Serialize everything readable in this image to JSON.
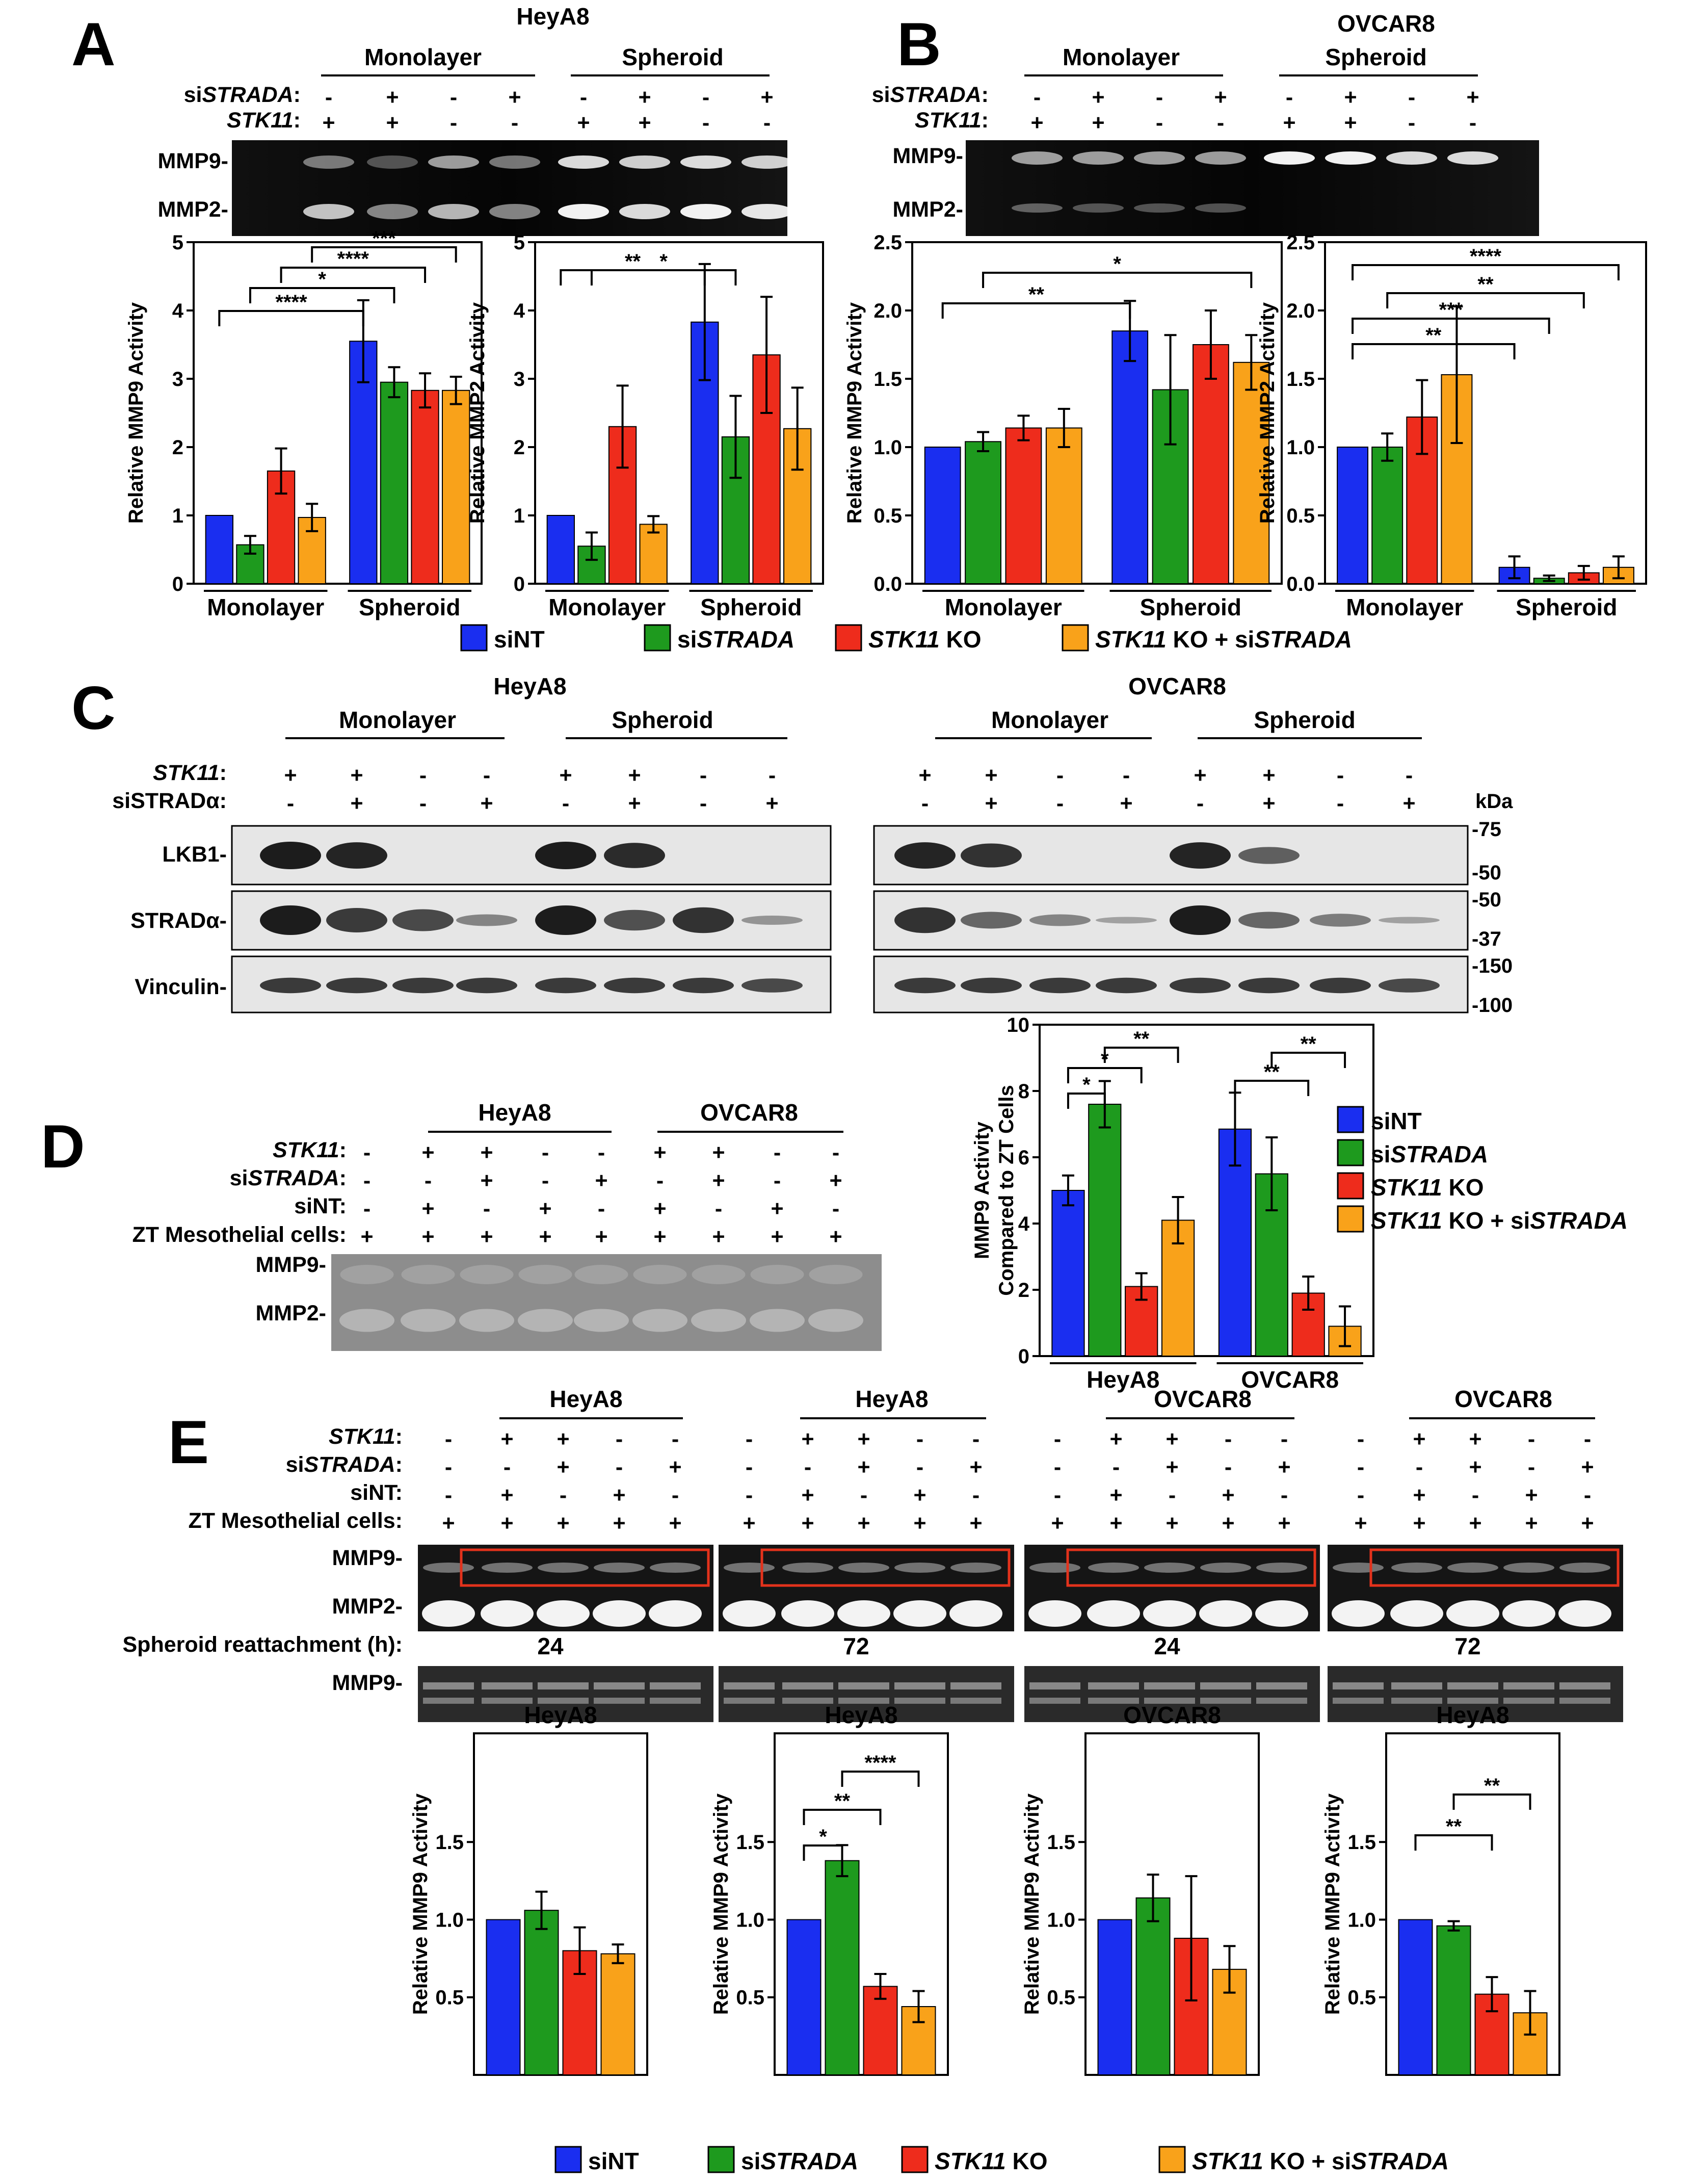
{
  "colors": {
    "siNT": "#1a2ef0",
    "siSTRADA": "#1e9a1e",
    "KO": "#ee2c1c",
    "KOsi": "#f9a21a"
  },
  "panels": [
    {
      "letter": "A"
    },
    {
      "letter": "B"
    },
    {
      "letter": "C"
    },
    {
      "letter": "D"
    },
    {
      "letter": "E"
    }
  ],
  "cells": {
    "heya8": "HeyA8",
    "ovcar8": "OVCAR8"
  },
  "conditions": {
    "monolayer": "Monolayer",
    "spheroid": "Spheroid"
  },
  "row_labels": {
    "si_prefix": "si",
    "strada_italic": "STRADA",
    "strada_alpha": "STRADα",
    "stk11": "STK11",
    "sint": "siNT",
    "zt": "ZT Mesothelial cells",
    "colon": ":"
  },
  "gel_labels": {
    "mmp9": "MMP9-",
    "mmp2": "MMP2-",
    "lkb1": "LKB1-",
    "stradA": "STRADα-",
    "vinculin": "Vinculin-"
  },
  "kda": {
    "unit": "kDa",
    "marks": [
      "-75",
      "-50",
      "-50",
      "-37",
      "-150",
      "-100"
    ]
  },
  "signs": {
    "plus": "+",
    "minus": "-"
  },
  "legend": {
    "items": [
      {
        "key": "siNT",
        "pre": "siNT",
        "ital": "",
        "post": ""
      },
      {
        "key": "siSTRADA",
        "pre": "si",
        "ital": "STRADA",
        "post": ""
      },
      {
        "key": "KO",
        "pre": "",
        "ital": "STK11",
        "post": " KO"
      },
      {
        "key": "KOsi",
        "pre": "",
        "ital": "STK11",
        "post": " KO + si",
        "ital2": "STRADA"
      }
    ]
  },
  "e_timepoints": {
    "label": "Spheroid reattachment (h):",
    "values": [
      "24",
      "72",
      "24",
      "72"
    ]
  },
  "chart_data": [
    {
      "id": "A_mmp9",
      "type": "bar",
      "title": "",
      "ylabel": "Relative MMP9 Activity",
      "ylim": [
        0,
        5
      ],
      "yticks": [
        "0",
        "1",
        "2",
        "3",
        "4",
        "5"
      ],
      "groups": [
        "Monolayer",
        "Spheroid"
      ],
      "series": [
        {
          "name": "siNT",
          "values": [
            1.0,
            3.55
          ],
          "errors": [
            0,
            0.6
          ]
        },
        {
          "name": "siSTRADA",
          "values": [
            0.57,
            2.95
          ],
          "errors": [
            0.13,
            0.22
          ]
        },
        {
          "name": "STK11 KO",
          "values": [
            1.65,
            2.83
          ],
          "errors": [
            0.33,
            0.25
          ]
        },
        {
          "name": "STK11 KO + siSTRADA",
          "values": [
            0.97,
            2.83
          ],
          "errors": [
            0.2,
            0.2
          ]
        }
      ],
      "significance": [
        "****",
        "*",
        "****",
        "***"
      ]
    },
    {
      "id": "A_mmp2",
      "type": "bar",
      "title": "",
      "ylabel": "Relative MMP2 Activity",
      "ylim": [
        0,
        5
      ],
      "yticks": [
        "0",
        "1",
        "2",
        "3",
        "4",
        "5"
      ],
      "groups": [
        "Monolayer",
        "Spheroid"
      ],
      "series": [
        {
          "name": "siNT",
          "values": [
            1.0,
            3.83
          ],
          "errors": [
            0,
            0.85
          ]
        },
        {
          "name": "siSTRADA",
          "values": [
            0.55,
            2.15
          ],
          "errors": [
            0.2,
            0.6
          ]
        },
        {
          "name": "STK11 KO",
          "values": [
            2.3,
            3.35
          ],
          "errors": [
            0.6,
            0.85
          ]
        },
        {
          "name": "STK11 KO + siSTRADA",
          "values": [
            0.87,
            2.27
          ],
          "errors": [
            0.12,
            0.6
          ]
        }
      ],
      "significance": [
        "**",
        "*"
      ]
    },
    {
      "id": "B_mmp9",
      "type": "bar",
      "title": "",
      "ylabel": "Relative MMP9 Activity",
      "ylim": [
        0,
        2.5
      ],
      "yticks": [
        "0.0",
        "0.5",
        "1.0",
        "1.5",
        "2.0",
        "2.5"
      ],
      "groups": [
        "Monolayer",
        "Spheroid"
      ],
      "series": [
        {
          "name": "siNT",
          "values": [
            1.0,
            1.85
          ],
          "errors": [
            0,
            0.22
          ]
        },
        {
          "name": "siSTRADA",
          "values": [
            1.04,
            1.42
          ],
          "errors": [
            0.07,
            0.4
          ]
        },
        {
          "name": "STK11 KO",
          "values": [
            1.14,
            1.75
          ],
          "errors": [
            0.09,
            0.25
          ]
        },
        {
          "name": "STK11 KO + siSTRADA",
          "values": [
            1.14,
            1.62
          ],
          "errors": [
            0.14,
            0.2
          ]
        }
      ],
      "significance": [
        "**",
        "*"
      ]
    },
    {
      "id": "B_mmp2",
      "type": "bar",
      "title": "",
      "ylabel": "Relative MMP2 Activity",
      "ylim": [
        0,
        2.5
      ],
      "yticks": [
        "0.0",
        "0.5",
        "1.0",
        "1.5",
        "2.0",
        "2.5"
      ],
      "groups": [
        "Monolayer",
        "Spheroid"
      ],
      "series": [
        {
          "name": "siNT",
          "values": [
            1.0,
            0.12
          ],
          "errors": [
            0,
            0.08
          ]
        },
        {
          "name": "siSTRADA",
          "values": [
            1.0,
            0.04
          ],
          "errors": [
            0.1,
            0.02
          ]
        },
        {
          "name": "STK11 KO",
          "values": [
            1.22,
            0.08
          ],
          "errors": [
            0.27,
            0.05
          ]
        },
        {
          "name": "STK11 KO + siSTRADA",
          "values": [
            1.53,
            0.12
          ],
          "errors": [
            0.5,
            0.08
          ]
        }
      ],
      "significance": [
        "**",
        "***",
        "**",
        "****"
      ]
    },
    {
      "id": "D",
      "type": "bar",
      "title": "",
      "ylabel": "MMP9 Activity Compared to ZT Cells",
      "ylim": [
        0,
        10
      ],
      "yticks": [
        "0",
        "2",
        "4",
        "6",
        "8",
        "10"
      ],
      "groups": [
        "HeyA8",
        "OVCAR8"
      ],
      "series": [
        {
          "name": "siNT",
          "values": [
            5.0,
            6.85
          ],
          "errors": [
            0.45,
            1.1
          ]
        },
        {
          "name": "siSTRADA",
          "values": [
            7.6,
            5.5
          ],
          "errors": [
            0.7,
            1.1
          ]
        },
        {
          "name": "STK11 KO",
          "values": [
            2.1,
            1.9
          ],
          "errors": [
            0.4,
            0.5
          ]
        },
        {
          "name": "STK11 KO + siSTRADA",
          "values": [
            4.1,
            0.9
          ],
          "errors": [
            0.7,
            0.6
          ]
        }
      ],
      "significance": [
        "*",
        "*",
        "**",
        "**",
        "**"
      ]
    },
    {
      "id": "E1",
      "type": "bar",
      "title": "HeyA8",
      "ylabel": "Relative MMP9 Activity",
      "ylim": [
        0,
        2.2
      ],
      "yticks": [
        "0.5",
        "1.0",
        "1.5"
      ],
      "series": [
        {
          "name": "siNT",
          "values": [
            1.0
          ],
          "errors": [
            0
          ]
        },
        {
          "name": "siSTRADA",
          "values": [
            1.06
          ],
          "errors": [
            0.12
          ]
        },
        {
          "name": "STK11 KO",
          "values": [
            0.8
          ],
          "errors": [
            0.15
          ]
        },
        {
          "name": "STK11 KO + siSTRADA",
          "values": [
            0.78
          ],
          "errors": [
            0.06
          ]
        }
      ],
      "significance": []
    },
    {
      "id": "E2",
      "type": "bar",
      "title": "HeyA8",
      "ylabel": "Relative MMP9 Activity",
      "ylim": [
        0,
        2.2
      ],
      "yticks": [
        "0.5",
        "1.0",
        "1.5"
      ],
      "series": [
        {
          "name": "siNT",
          "values": [
            1.0
          ],
          "errors": [
            0
          ]
        },
        {
          "name": "siSTRADA",
          "values": [
            1.38
          ],
          "errors": [
            0.1
          ]
        },
        {
          "name": "STK11 KO",
          "values": [
            0.57
          ],
          "errors": [
            0.08
          ]
        },
        {
          "name": "STK11 KO + siSTRADA",
          "values": [
            0.44
          ],
          "errors": [
            0.1
          ]
        }
      ],
      "significance": [
        "*",
        "**",
        "****"
      ]
    },
    {
      "id": "E3",
      "type": "bar",
      "title": "OVCAR8",
      "ylabel": "Relative MMP9 Activity",
      "ylim": [
        0,
        2.2
      ],
      "yticks": [
        "0.5",
        "1.0",
        "1.5"
      ],
      "series": [
        {
          "name": "siNT",
          "values": [
            1.0
          ],
          "errors": [
            0
          ]
        },
        {
          "name": "siSTRADA",
          "values": [
            1.14
          ],
          "errors": [
            0.15
          ]
        },
        {
          "name": "STK11 KO",
          "values": [
            0.88
          ],
          "errors": [
            0.4
          ]
        },
        {
          "name": "STK11 KO + siSTRADA",
          "values": [
            0.68
          ],
          "errors": [
            0.15
          ]
        }
      ],
      "significance": []
    },
    {
      "id": "E4",
      "type": "bar",
      "title": "HeyA8",
      "ylabel": "Relative MMP9 Activity",
      "ylim": [
        0,
        2.2
      ],
      "yticks": [
        "0.5",
        "1.0",
        "1.5"
      ],
      "series": [
        {
          "name": "siNT",
          "values": [
            1.0
          ],
          "errors": [
            0
          ]
        },
        {
          "name": "siSTRADA",
          "values": [
            0.96
          ],
          "errors": [
            0.03
          ]
        },
        {
          "name": "STK11 KO",
          "values": [
            0.52
          ],
          "errors": [
            0.11
          ]
        },
        {
          "name": "STK11 KO + siSTRADA",
          "values": [
            0.4
          ],
          "errors": [
            0.14
          ]
        }
      ],
      "significance": [
        "**",
        "**"
      ]
    }
  ]
}
